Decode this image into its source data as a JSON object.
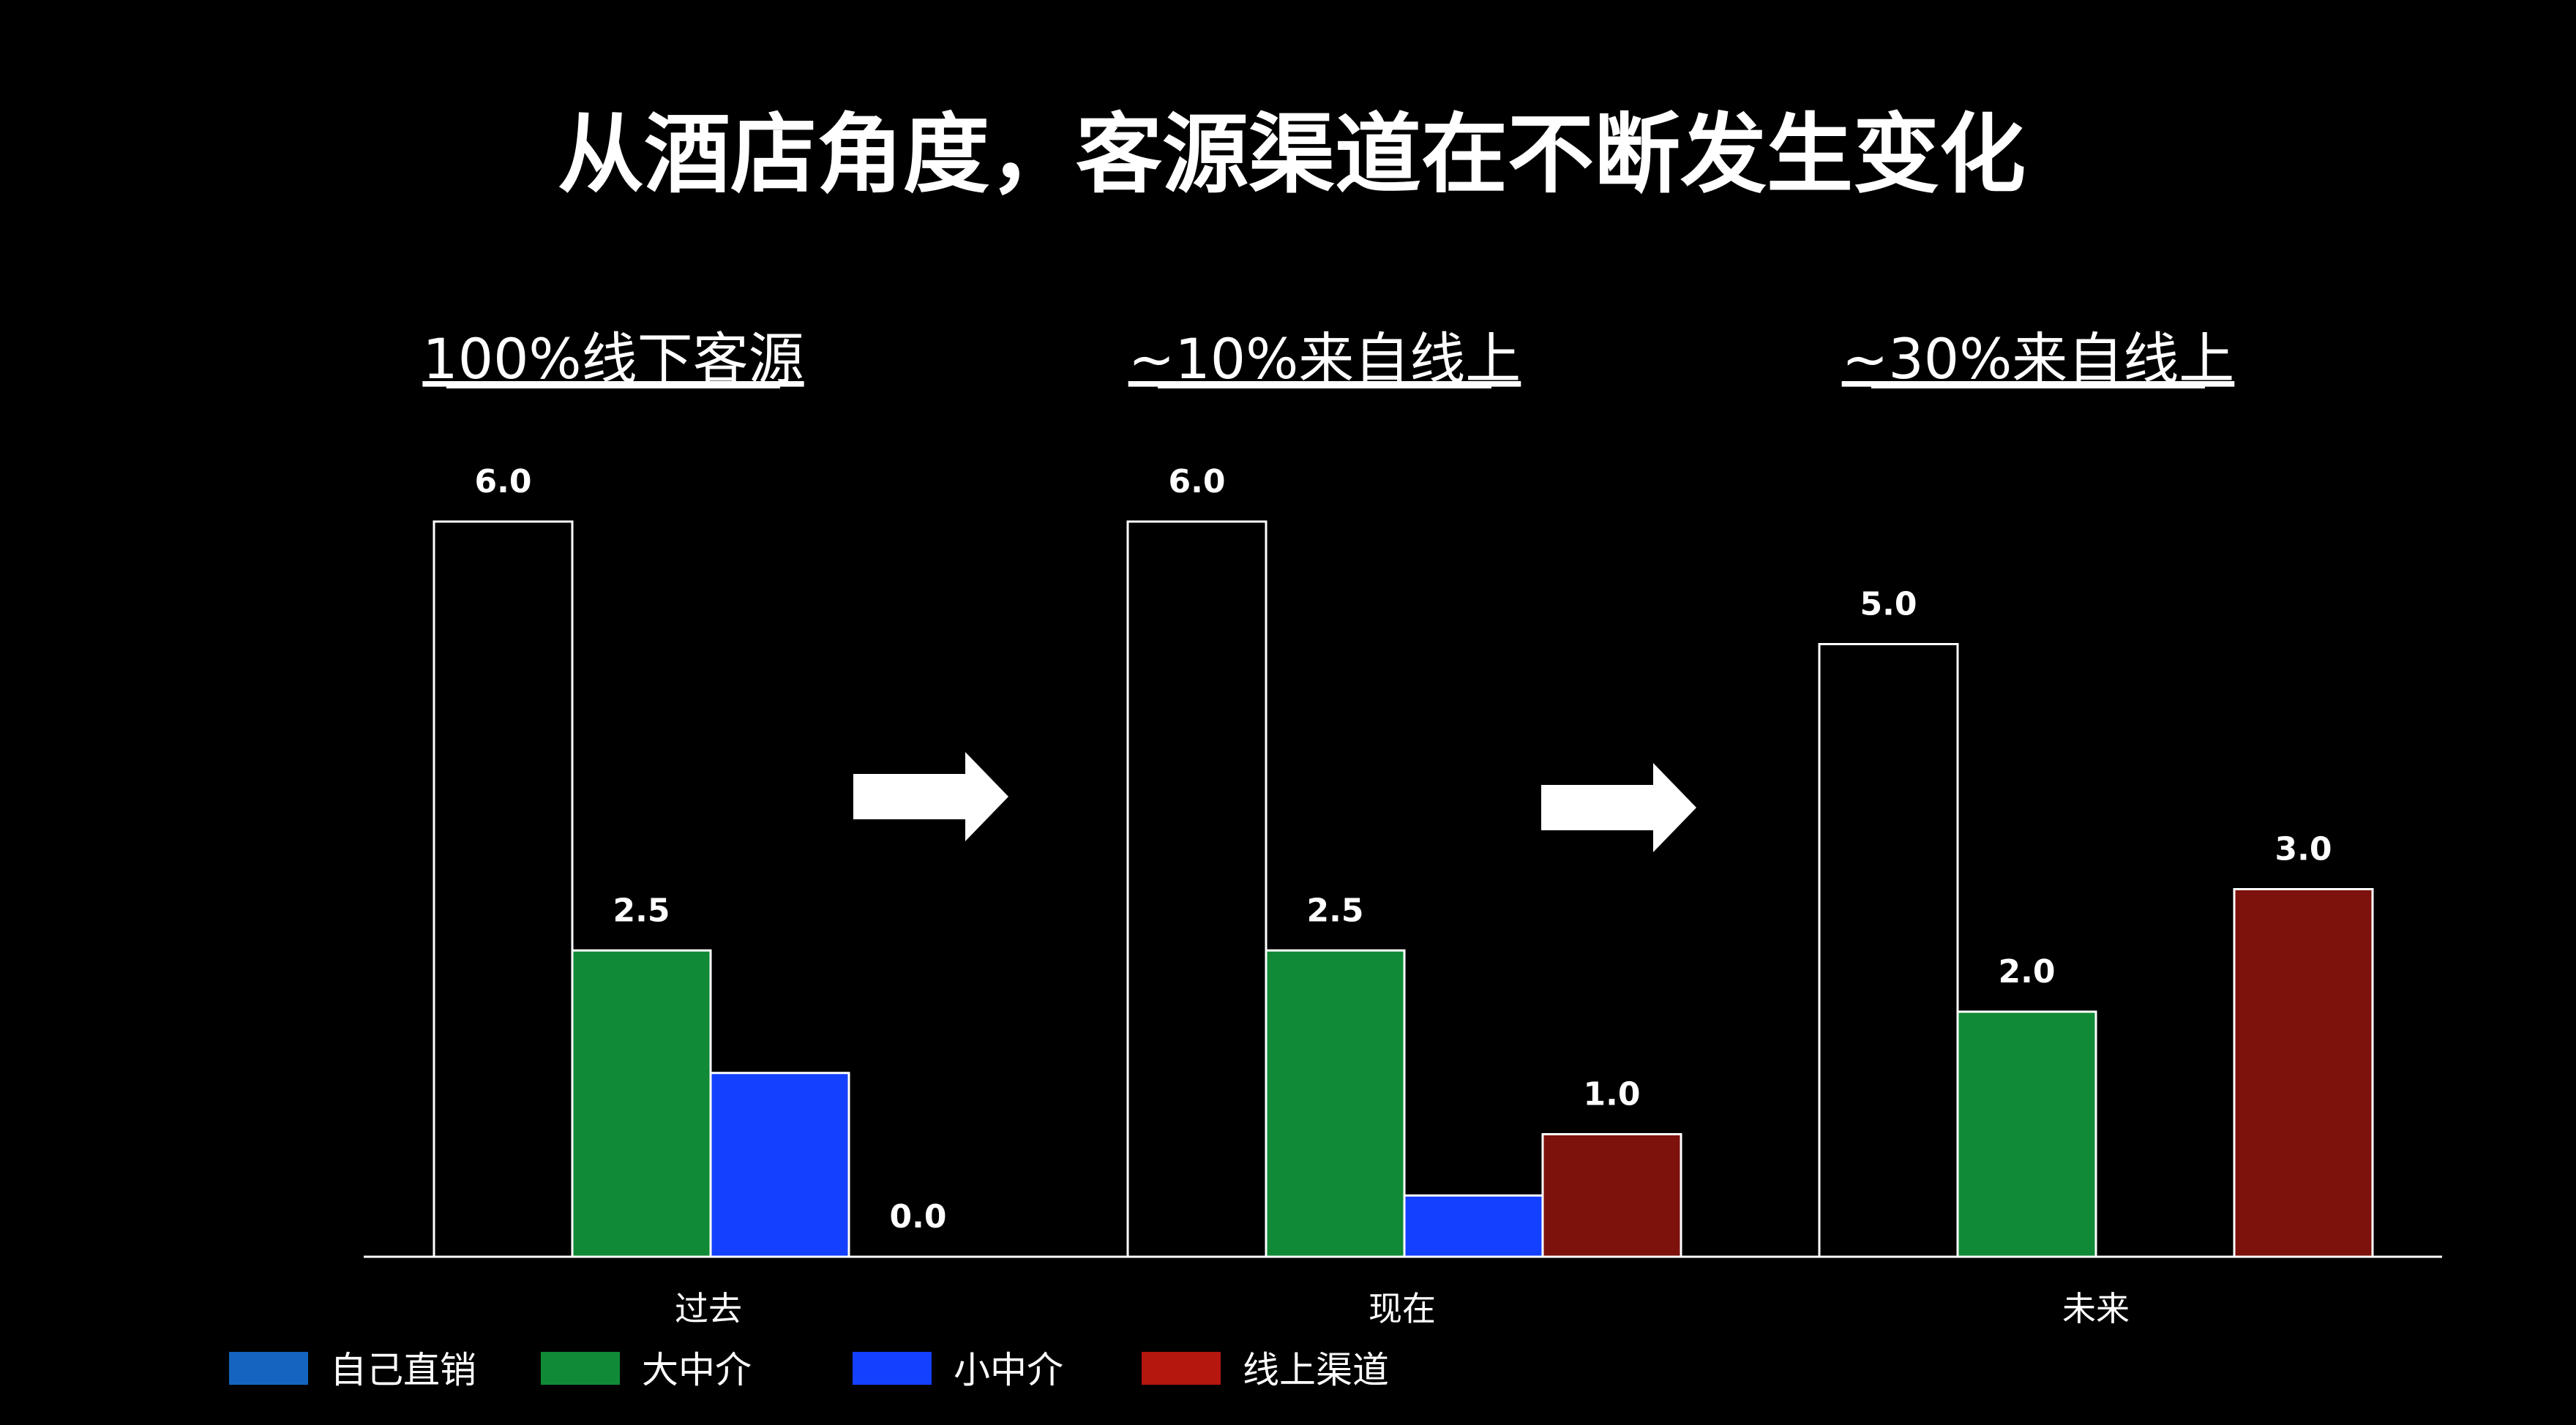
{
  "title": "从酒店角度，客源渠道在不断发生变化",
  "colors": {
    "background": "#000000",
    "text": "#ffffff",
    "axis": "#ffffff"
  },
  "arrows": [
    {
      "name": "arrow-right-icon"
    },
    {
      "name": "arrow-right-icon"
    }
  ],
  "chart_data": {
    "type": "bar",
    "categories": [
      "过去",
      "现在",
      "未来"
    ],
    "subtitles": [
      "100%线下客源",
      "~10%来自线上",
      "~30%来自线上"
    ],
    "ylim": [
      0,
      6
    ],
    "grid": false,
    "legend_position": "bottom-left",
    "series": [
      {
        "name": "自己直销",
        "values": [
          6.0,
          6.0,
          5.0
        ],
        "fill": "none",
        "stroke": "#ffffff",
        "legend_color": "#1565c0",
        "labels": [
          "6.0",
          "6.0",
          "5.0"
        ]
      },
      {
        "name": "大中介",
        "values": [
          2.5,
          2.5,
          2.0
        ],
        "fill": "#108a36",
        "stroke": "#ffffff",
        "legend_color": "#108a36",
        "labels": [
          "2.5",
          "2.5",
          "2.0"
        ]
      },
      {
        "name": "小中介",
        "values": [
          1.5,
          0.5,
          0
        ],
        "fill": "#1440ff",
        "stroke": "#ffffff",
        "legend_color": "#1440ff",
        "labels": [
          "",
          "",
          ""
        ]
      },
      {
        "name": "线上渠道",
        "values": [
          0.0,
          1.0,
          3.0
        ],
        "fill": "#7d110c",
        "stroke": "#ffffff",
        "legend_color": "#b5160e",
        "labels": [
          "0.0",
          "1.0",
          "3.0"
        ]
      }
    ]
  }
}
